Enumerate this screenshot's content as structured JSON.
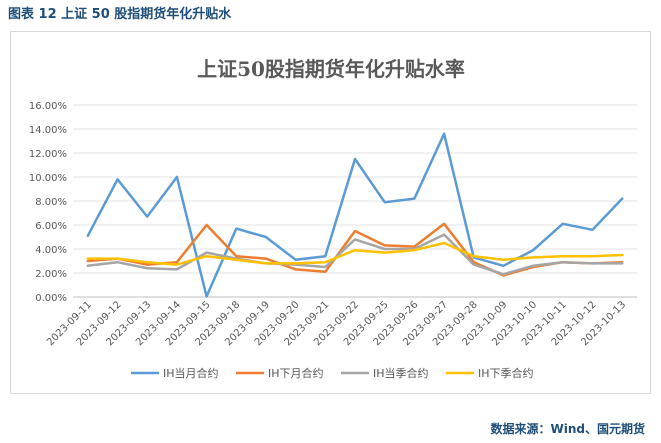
{
  "figure": {
    "caption": "图表 12 上证 50 股指期货年化升贴水",
    "source": "数据来源：Wind、国元期货"
  },
  "chart_data": {
    "type": "line",
    "title": "上证50股指期货年化升贴水率",
    "xlabel": "",
    "ylabel": "",
    "categories": [
      "2023-09-11",
      "2023-09-12",
      "2023-09-13",
      "2023-09-14",
      "2023-09-15",
      "2023-09-18",
      "2023-09-19",
      "2023-09-20",
      "2023-09-21",
      "2023-09-22",
      "2023-09-25",
      "2023-09-26",
      "2023-09-27",
      "2023-09-28",
      "2023-10-09",
      "2023-10-10",
      "2023-10-11",
      "2023-10-12",
      "2023-10-13"
    ],
    "yticks": [
      "0.00%",
      "2.00%",
      "4.00%",
      "6.00%",
      "8.00%",
      "10.00%",
      "12.00%",
      "14.00%",
      "16.00%"
    ],
    "ylim": [
      0,
      16
    ],
    "y_unit": "%",
    "grid": true,
    "legend_position": "bottom",
    "series": [
      {
        "name": "IH当月合约",
        "color": "#5b9bd5",
        "values": [
          5.1,
          9.8,
          6.7,
          10.0,
          0.05,
          5.7,
          5.0,
          3.1,
          3.4,
          11.5,
          7.9,
          8.2,
          13.6,
          3.3,
          2.6,
          3.9,
          6.1,
          5.6,
          8.2
        ]
      },
      {
        "name": "IH下月合约",
        "color": "#ed7d31",
        "values": [
          3.0,
          3.2,
          2.7,
          2.9,
          6.0,
          3.4,
          3.2,
          2.3,
          2.1,
          5.5,
          4.3,
          4.2,
          6.1,
          2.9,
          1.8,
          2.5,
          2.9,
          2.8,
          2.9
        ]
      },
      {
        "name": "IH当季合约",
        "color": "#a5a5a5",
        "values": [
          2.6,
          2.9,
          2.4,
          2.3,
          3.7,
          3.2,
          2.8,
          2.7,
          2.5,
          4.8,
          4.0,
          4.0,
          5.2,
          2.7,
          1.9,
          2.6,
          2.9,
          2.8,
          2.8
        ]
      },
      {
        "name": "IH下季合约",
        "color": "#ffc000",
        "values": [
          3.2,
          3.2,
          2.9,
          2.7,
          3.4,
          3.1,
          2.8,
          2.8,
          2.9,
          3.9,
          3.7,
          3.9,
          4.5,
          3.4,
          3.1,
          3.3,
          3.4,
          3.4,
          3.5
        ]
      }
    ]
  }
}
